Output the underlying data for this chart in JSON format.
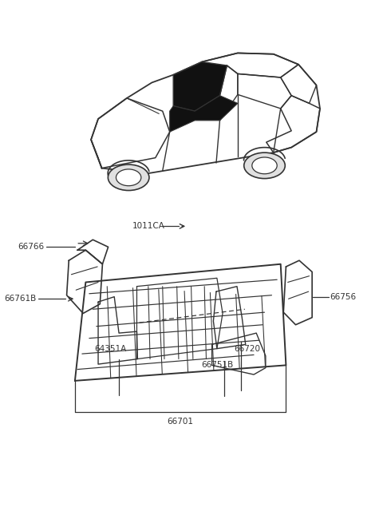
{
  "bg_color": "#ffffff",
  "line_color": "#333333",
  "figsize": [
    4.8,
    6.55
  ],
  "dpi": 100,
  "label_1011CA": "1011CA",
  "label_66766": "66766",
  "label_66761B": "66761B",
  "label_64351A": "64351A",
  "label_66720": "66720",
  "label_66751B": "66751B",
  "label_66701": "66701",
  "label_66756": "66756"
}
